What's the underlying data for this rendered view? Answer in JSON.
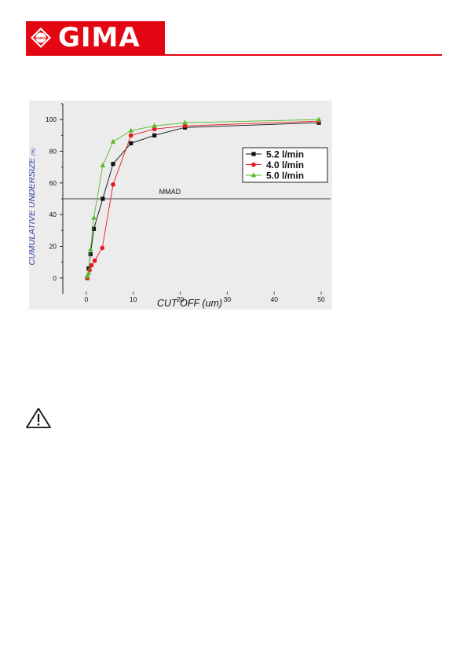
{
  "header": {
    "brand": "GIMA",
    "emblem_text": "GIMA",
    "brand_color": "#e30613"
  },
  "icons": {
    "warning": "warning-triangle-icon"
  },
  "chart_data": {
    "type": "line",
    "title": "",
    "xlabel": "CUT OFF (um)",
    "ylabel": "CUMULATIVE UNDERSIZE",
    "ylabel_unit": "(%)",
    "xlim": [
      -5,
      52
    ],
    "ylim": [
      -10,
      110
    ],
    "xticks": [
      0,
      10,
      20,
      30,
      40,
      50
    ],
    "yticks": [
      0,
      20,
      40,
      60,
      80,
      100
    ],
    "grid": false,
    "legend_position": "top-right",
    "reference_line": {
      "label": "MMAD",
      "y": 50
    },
    "series": [
      {
        "name": "5.2 l/min",
        "color": "#111111",
        "marker": "square",
        "x": [
          0.2,
          0.5,
          0.9,
          1.6,
          3.5,
          5.7,
          9.5,
          14.5,
          21,
          49.5
        ],
        "y": [
          0,
          6,
          15,
          31,
          50,
          72,
          85,
          90,
          95,
          98
        ]
      },
      {
        "name": "4.0 l/min",
        "color": "#e8141c",
        "marker": "circle",
        "x": [
          0.2,
          0.7,
          1.1,
          1.8,
          3.4,
          5.7,
          9.5,
          14.5,
          21,
          49.5
        ],
        "y": [
          0,
          5,
          8,
          11,
          19,
          59,
          90,
          94,
          96,
          99
        ]
      },
      {
        "name": "5.0 l/min",
        "color": "#58b82a",
        "marker": "triangle",
        "x": [
          0.2,
          0.5,
          0.9,
          1.6,
          3.5,
          5.7,
          9.5,
          14.5,
          21,
          49.5
        ],
        "y": [
          1,
          3,
          18,
          38,
          71,
          86,
          93,
          96,
          98,
          100
        ]
      }
    ]
  }
}
